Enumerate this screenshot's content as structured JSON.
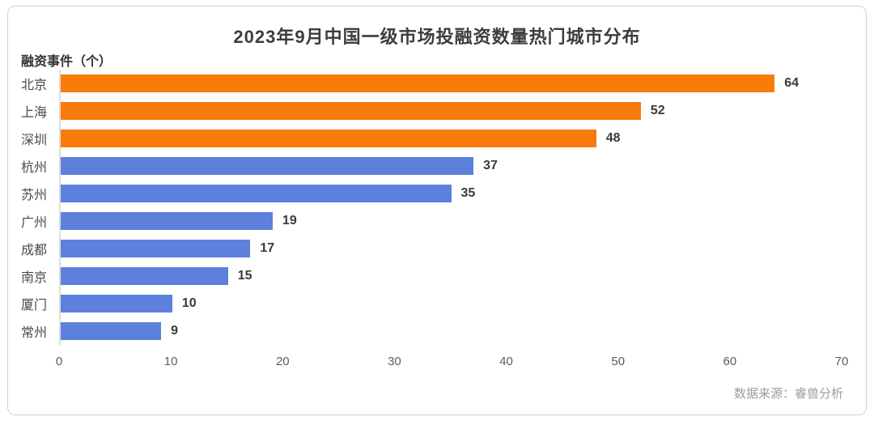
{
  "chart_data": {
    "type": "bar",
    "orientation": "horizontal",
    "title": "2023年9月中国一级市场投融资数量热门城市分布",
    "value_axis_caption": "融资事件（个）",
    "categories": [
      "北京",
      "上海",
      "深圳",
      "杭州",
      "苏州",
      "广州",
      "成都",
      "南京",
      "厦门",
      "常州"
    ],
    "values": [
      64,
      52,
      48,
      37,
      35,
      19,
      17,
      15,
      10,
      9
    ],
    "bar_colors": [
      "#f87b0b",
      "#f87b0b",
      "#f87b0b",
      "#5c80db",
      "#5c80db",
      "#5c80db",
      "#5c80db",
      "#5c80db",
      "#5c80db",
      "#5c80db"
    ],
    "xlim": [
      0,
      70
    ],
    "x_ticks": [
      0,
      10,
      20,
      30,
      40,
      50,
      60,
      70
    ],
    "grid": false,
    "legend": "none",
    "data_labels": true,
    "source": "数据来源：睿兽分析"
  },
  "colors": {
    "highlight": "#f87b0b",
    "base": "#5c80db",
    "axis_line": "#dddddd",
    "title_text": "#3d3d3d",
    "source_text": "#9b9b9b"
  }
}
